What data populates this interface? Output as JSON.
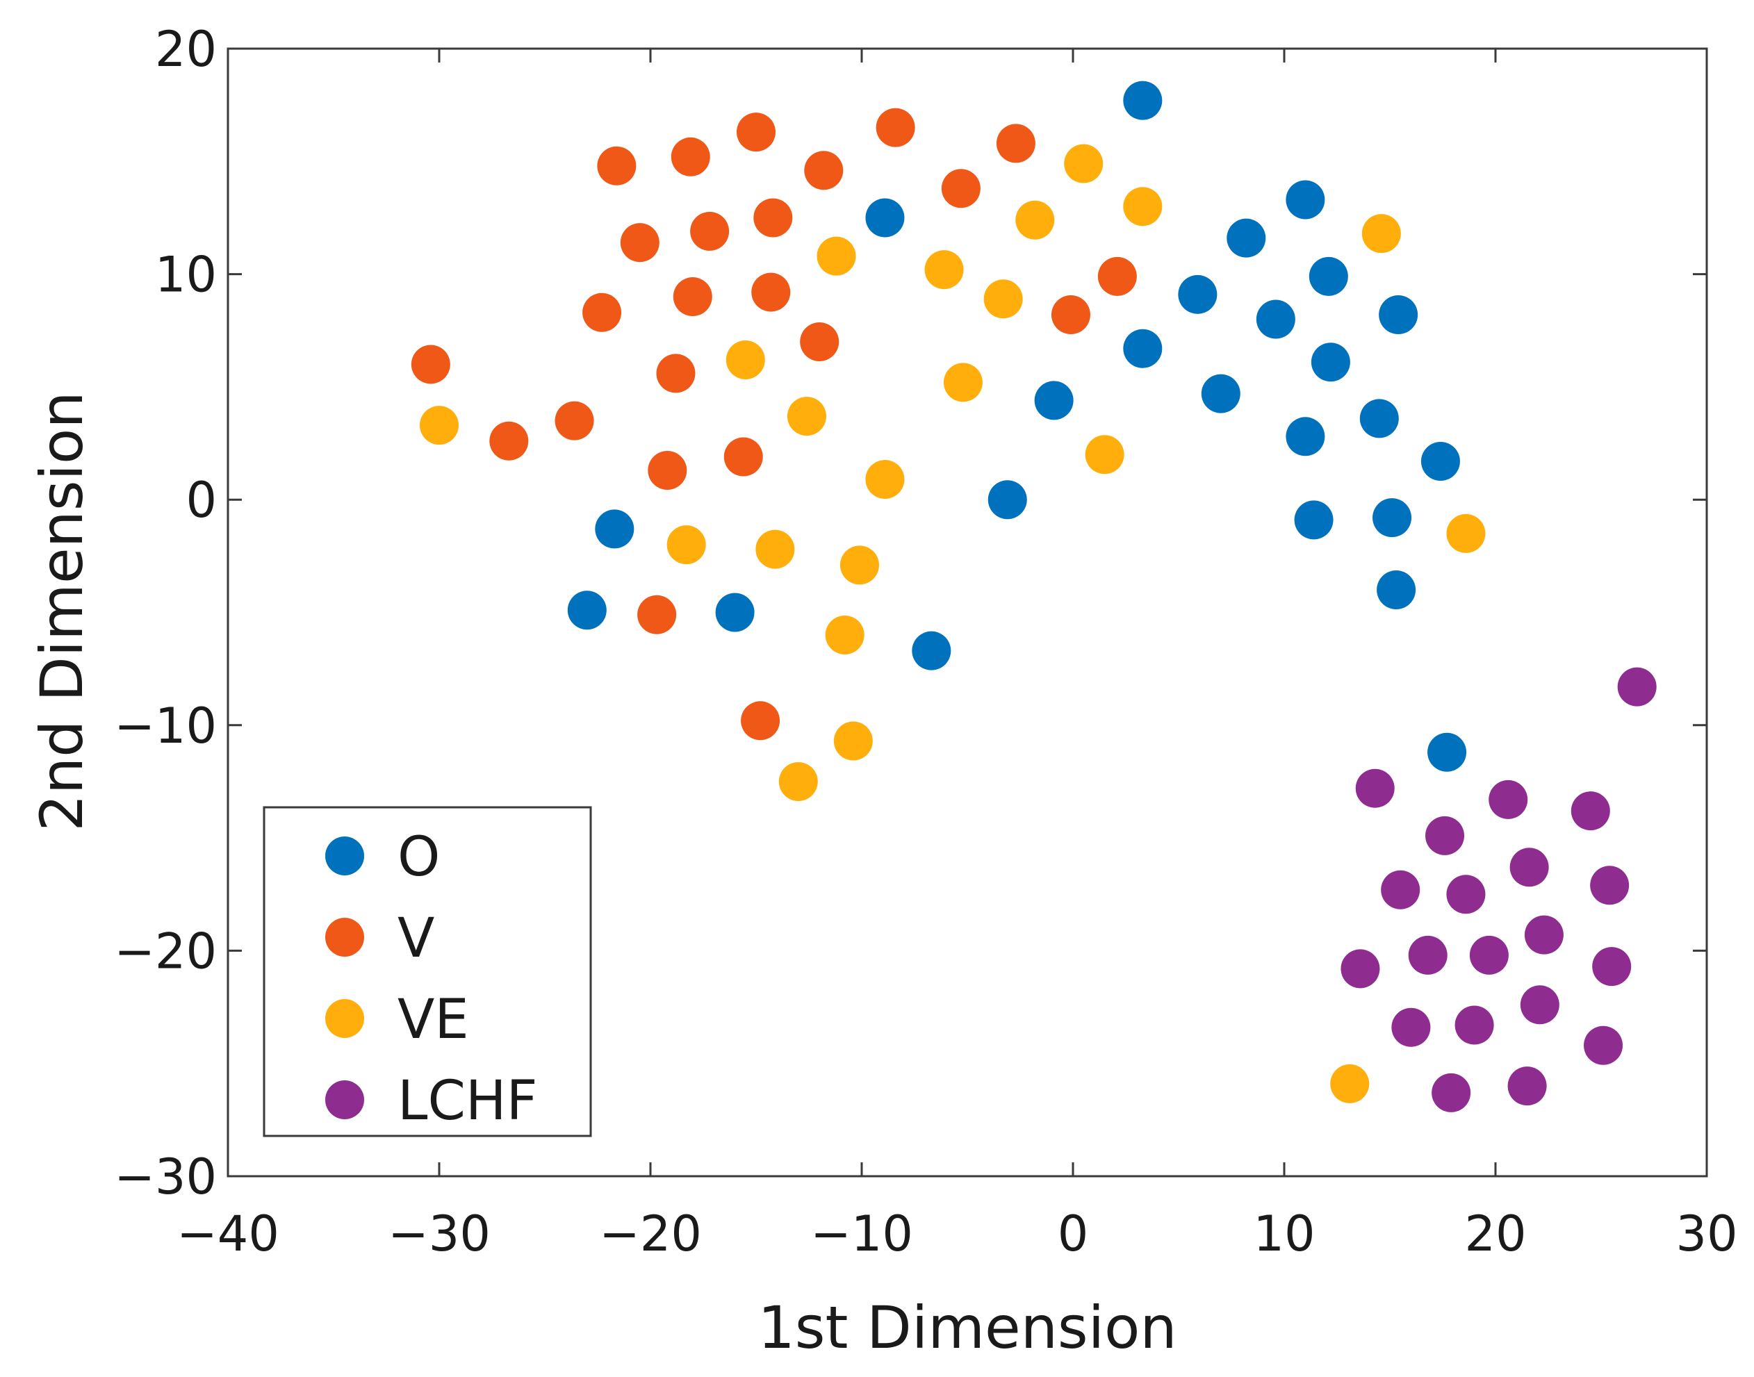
{
  "chart_data": {
    "type": "scatter",
    "title": "",
    "xlabel": "1st Dimension",
    "ylabel": "2nd Dimension",
    "xlim": [
      -40,
      30
    ],
    "ylim": [
      -30,
      20
    ],
    "xticks": [
      -40,
      -30,
      -20,
      -10,
      0,
      10,
      20,
      30
    ],
    "yticks": [
      -30,
      -20,
      -10,
      0,
      10,
      20
    ],
    "xtick_labels": [
      "−40",
      "−30",
      "−20",
      "−10",
      "0",
      "10",
      "20",
      "30"
    ],
    "ytick_labels": [
      "−30",
      "−20",
      "−10",
      "0",
      "10",
      "20"
    ],
    "grid": false,
    "legend_position": "bottom-left",
    "series": [
      {
        "name": "O",
        "color": "#0072BD",
        "points": [
          [
            3.3,
            17.7
          ],
          [
            -8.9,
            12.5
          ],
          [
            11.0,
            13.3
          ],
          [
            8.2,
            11.6
          ],
          [
            12.1,
            9.9
          ],
          [
            5.9,
            9.1
          ],
          [
            9.6,
            8.0
          ],
          [
            15.4,
            8.2
          ],
          [
            3.3,
            6.7
          ],
          [
            12.2,
            6.1
          ],
          [
            7.0,
            4.7
          ],
          [
            -0.9,
            4.4
          ],
          [
            11.0,
            2.8
          ],
          [
            14.5,
            3.6
          ],
          [
            17.4,
            1.7
          ],
          [
            -3.1,
            0.0
          ],
          [
            11.4,
            -0.9
          ],
          [
            15.1,
            -0.8
          ],
          [
            15.3,
            -4.0
          ],
          [
            -21.7,
            -1.3
          ],
          [
            -23.0,
            -4.9
          ],
          [
            -16.0,
            -5.0
          ],
          [
            -6.7,
            -6.7
          ],
          [
            17.7,
            -11.2
          ]
        ]
      },
      {
        "name": "V",
        "color": "#EF5817",
        "points": [
          [
            -21.6,
            14.8
          ],
          [
            -18.1,
            15.2
          ],
          [
            -15.0,
            16.3
          ],
          [
            -11.8,
            14.6
          ],
          [
            -8.4,
            16.5
          ],
          [
            -2.7,
            15.8
          ],
          [
            -20.5,
            11.4
          ],
          [
            -17.2,
            11.9
          ],
          [
            -14.2,
            12.5
          ],
          [
            -5.3,
            13.8
          ],
          [
            -22.3,
            8.3
          ],
          [
            -18.0,
            9.0
          ],
          [
            -14.3,
            9.2
          ],
          [
            2.1,
            9.9
          ],
          [
            -0.1,
            8.2
          ],
          [
            -30.4,
            6.0
          ],
          [
            -18.8,
            5.6
          ],
          [
            -12.0,
            7.0
          ],
          [
            -23.6,
            3.5
          ],
          [
            -26.7,
            2.6
          ],
          [
            -19.2,
            1.3
          ],
          [
            -15.6,
            1.9
          ],
          [
            -19.7,
            -5.1
          ],
          [
            -14.8,
            -9.8
          ]
        ]
      },
      {
        "name": "VE",
        "color": "#FFAE0C",
        "points": [
          [
            0.5,
            14.9
          ],
          [
            3.3,
            13.0
          ],
          [
            -1.8,
            12.4
          ],
          [
            14.6,
            11.8
          ],
          [
            -11.2,
            10.8
          ],
          [
            -6.1,
            10.2
          ],
          [
            -3.3,
            8.9
          ],
          [
            -15.5,
            6.2
          ],
          [
            -5.2,
            5.2
          ],
          [
            -12.6,
            3.7
          ],
          [
            -30.0,
            3.3
          ],
          [
            1.5,
            2.0
          ],
          [
            -8.9,
            0.9
          ],
          [
            -18.3,
            -2.0
          ],
          [
            -14.1,
            -2.2
          ],
          [
            -10.1,
            -2.9
          ],
          [
            18.6,
            -1.5
          ],
          [
            -10.8,
            -6.0
          ],
          [
            -10.4,
            -10.7
          ],
          [
            -13.0,
            -12.5
          ],
          [
            13.1,
            -25.9
          ]
        ]
      },
      {
        "name": "LCHF",
        "color": "#8E2C8F",
        "points": [
          [
            26.7,
            -8.3
          ],
          [
            14.3,
            -12.8
          ],
          [
            20.6,
            -13.3
          ],
          [
            24.5,
            -13.8
          ],
          [
            17.6,
            -14.9
          ],
          [
            21.6,
            -16.3
          ],
          [
            15.5,
            -17.3
          ],
          [
            18.6,
            -17.5
          ],
          [
            25.4,
            -17.1
          ],
          [
            22.3,
            -19.3
          ],
          [
            13.6,
            -20.8
          ],
          [
            16.8,
            -20.2
          ],
          [
            19.7,
            -20.2
          ],
          [
            25.5,
            -20.7
          ],
          [
            22.1,
            -22.4
          ],
          [
            16.0,
            -23.4
          ],
          [
            19.0,
            -23.3
          ],
          [
            25.1,
            -24.2
          ],
          [
            17.9,
            -26.3
          ],
          [
            21.5,
            -26.0
          ]
        ]
      }
    ]
  }
}
